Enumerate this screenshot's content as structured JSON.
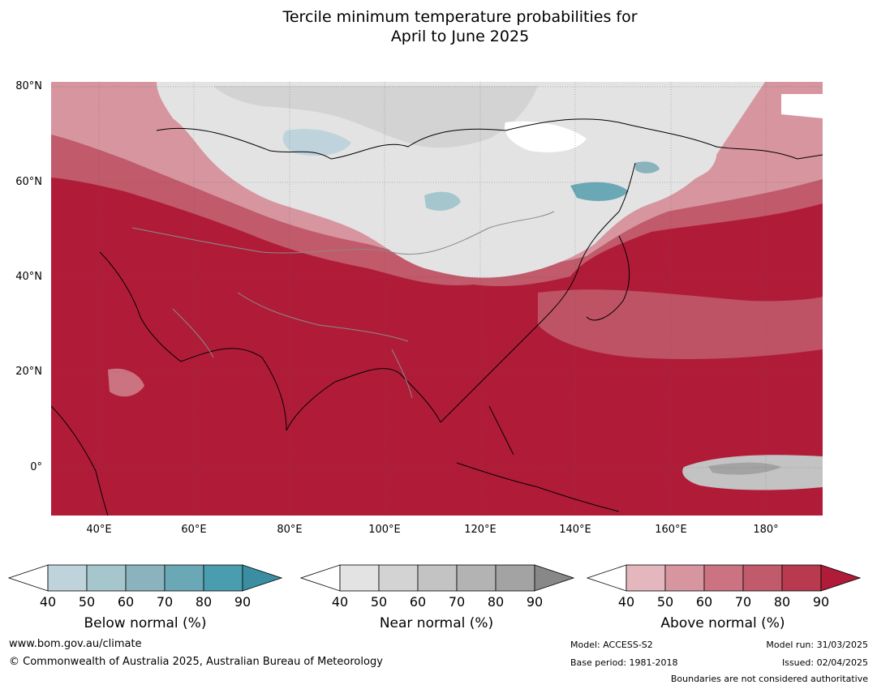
{
  "title_line1": "Tercile minimum temperature probabilities for",
  "title_line2": "April to June 2025",
  "map": {
    "lat_labels": [
      "80°N",
      "60°N",
      "40°N",
      "20°N",
      "0°"
    ],
    "lon_labels": [
      "40°E",
      "60°E",
      "80°E",
      "100°E",
      "120°E",
      "140°E",
      "160°E",
      "180°"
    ],
    "extent": {
      "lon_min": 30,
      "lon_max": 192,
      "lat_min": -10,
      "lat_max": 81
    },
    "dominant_category": "Above normal, 80-90%+ over most of Asia, Indian Ocean and West Pacific",
    "near_normal_region": "Northern Russia / Siberia",
    "below_normal_spots": "Scattered small areas in Siberia, Lake Baikal, Sea of Okhotsk"
  },
  "colorbars": [
    {
      "label": "Below normal (%)",
      "ticks": [
        "40",
        "50",
        "60",
        "70",
        "80",
        "90"
      ],
      "colors": [
        "#ffffff",
        "#bed3db",
        "#a6c6cd",
        "#8ab3be",
        "#6aa8b6",
        "#4a9daf",
        "#3b8ea2"
      ]
    },
    {
      "label": "Near normal (%)",
      "ticks": [
        "40",
        "50",
        "60",
        "70",
        "80",
        "90"
      ],
      "colors": [
        "#ffffff",
        "#e3e3e3",
        "#d3d3d3",
        "#c3c3c3",
        "#b3b3b3",
        "#a3a3a3",
        "#888888"
      ]
    },
    {
      "label": "Above normal (%)",
      "ticks": [
        "40",
        "50",
        "60",
        "70",
        "80",
        "90"
      ],
      "colors": [
        "#ffffff",
        "#e3b7bd",
        "#d6959f",
        "#cb7381",
        "#c15a6b",
        "#b73a4e",
        "#b01c38"
      ]
    }
  ],
  "footer": {
    "website": "www.bom.gov.au/climate",
    "copyright": "© Commonwealth of Australia 2025, Australian Bureau of Meteorology",
    "model": "Model: ACCESS-S2",
    "base_period": "Base period: 1981-2018",
    "model_run": "Model run: 31/03/2025",
    "issued": "Issued: 02/04/2025",
    "disclaimer": "Boundaries are not considered authoritative"
  }
}
